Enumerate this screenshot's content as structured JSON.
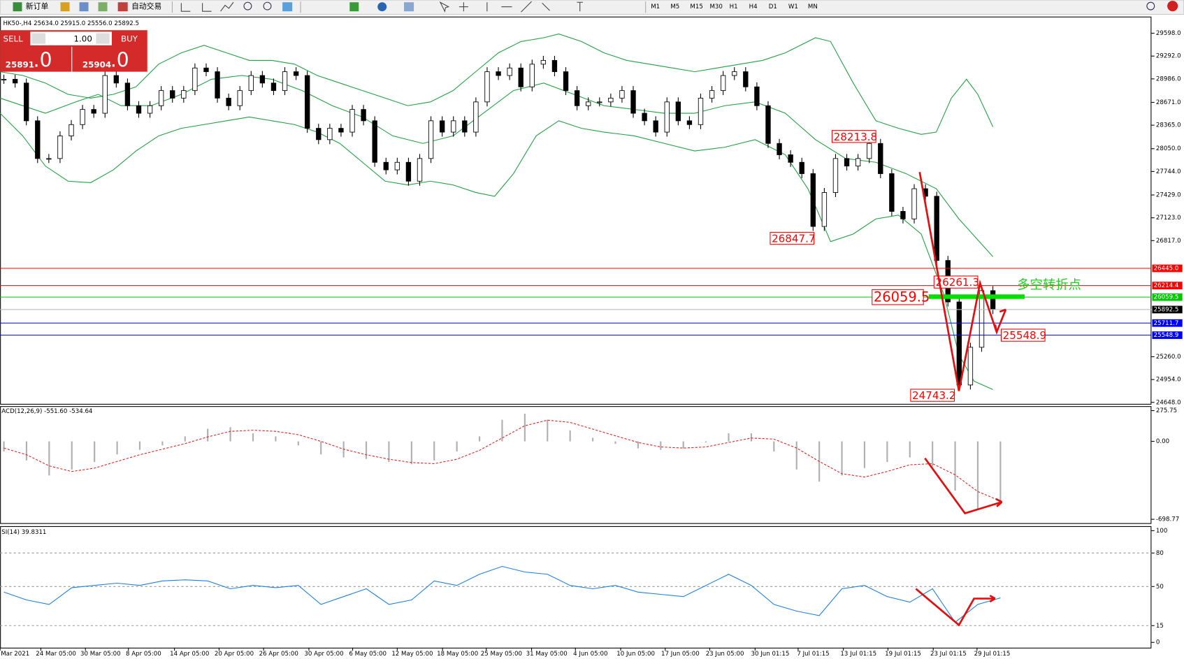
{
  "toolbar": {
    "buttons": [
      "新订单",
      "自动交易"
    ],
    "timeframes": [
      "M1",
      "M5",
      "M15",
      "M30",
      "H1",
      "H4",
      "D1",
      "W1",
      "MN"
    ]
  },
  "chart_info": "HK50-,H4  25634.0 25915.0 25556.0 25892.5",
  "trade_panel": {
    "sell": "SELL",
    "lots": "1.00",
    "buy": "BUY",
    "sell_price": "25891",
    "sell_fraction": ".0",
    "buy_price": "25904",
    "buy_fraction": ".0"
  },
  "time_axis": [
    "Mar 2021",
    "24 Mar 05:00",
    "30 Mar 05:00",
    "8 Apr 05:00",
    "14 Apr 05:00",
    "20 Apr 05:00",
    "26 Apr 05:00",
    "30 Apr 05:00",
    "6 May 05:00",
    "12 May 05:00",
    "18 May 05:00",
    "25 May 05:00",
    "31 May 05:00",
    "4 Jun 05:00",
    "10 Jun 05:00",
    "17 Jun 05:00",
    "23 Jun 05:00",
    "30 Jun 01:15",
    "7 Jul 01:15",
    "13 Jul 01:15",
    "19 Jul 01:15",
    "23 Jul 01:15",
    "29 Jul 01:15"
  ],
  "chart_data": [
    {
      "type": "candlestick",
      "values": [
        28981,
        28930,
        28424,
        27918,
        27918,
        28221,
        28373,
        28576,
        28525,
        29031,
        28930,
        28626,
        28525,
        28626,
        28829,
        28728,
        28829,
        29132,
        29082,
        28728,
        28626,
        28829,
        29031,
        28930,
        28829,
        29082,
        29031,
        28323,
        28171,
        28323,
        28272,
        28576,
        28424,
        27867,
        27766,
        27867,
        27614,
        27918,
        28424,
        28272,
        28424,
        28272,
        28677,
        29082,
        29031,
        29132,
        28879,
        29183,
        29234,
        29082,
        28829,
        28626,
        28677,
        28677,
        28728,
        28829,
        28525,
        28424,
        28272,
        28677,
        28424,
        28373,
        28728,
        28829,
        29031,
        29082,
        28879,
        28626,
        28120,
        27968,
        27867,
        27715,
        27007,
        27462,
        27918,
        27817,
        27918,
        28120,
        27715,
        27209,
        27108,
        27513,
        27412,
        26551,
        25995,
        24881,
        25387,
        26146,
        25892.5
      ],
      "ylim": [
        24628,
        29821
      ],
      "yticks": [
        {
          "value": 29598,
          "label": "29598.0"
        },
        {
          "value": 29292,
          "label": "29292.0"
        },
        {
          "value": 28986,
          "label": "28986.0"
        },
        {
          "value": 28671,
          "label": "28671.0"
        },
        {
          "value": 28365,
          "label": "28365.0"
        },
        {
          "value": 28050,
          "label": "28050.0"
        },
        {
          "value": 27744,
          "label": "27744.0"
        },
        {
          "value": 27429,
          "label": "27429.0"
        },
        {
          "value": 27123,
          "label": "27123.0"
        },
        {
          "value": 26817,
          "label": "26817.0"
        },
        {
          "value": 25260,
          "label": "25260.0"
        },
        {
          "value": 24954,
          "label": "24954.0"
        },
        {
          "value": 24648,
          "label": "24648.0"
        }
      ],
      "levels": [
        {
          "value": 26445,
          "label": "26445.0",
          "color": "#ff0000"
        },
        {
          "value": 26214.4,
          "label": "26214.4",
          "color": "#ff0000"
        },
        {
          "value": 26059.5,
          "label": "26059.5",
          "color": "#00c800"
        },
        {
          "value": 25892.5,
          "label": "25892.5",
          "color": "#000000"
        },
        {
          "value": 25711.7,
          "label": "25711.7",
          "color": "#0000ff"
        },
        {
          "value": 25548.9,
          "label": "25548.9",
          "color": "#0000ff"
        }
      ],
      "annotations": [
        28213.8,
        26847.7,
        26059.5,
        26261.3,
        25548.9,
        24743.2
      ],
      "note": "多空转折点"
    },
    {
      "type": "macd",
      "label": "ACD(12,26,9) -551.60 -534.64",
      "values": [
        -91,
        -171,
        -306,
        -252,
        -185,
        -117,
        -76,
        -36,
        45,
        113,
        127,
        72,
        45,
        -36,
        -117,
        -144,
        -158,
        -185,
        -205,
        -171,
        -91,
        45,
        194,
        248,
        194,
        99,
        32,
        -22,
        -63,
        -76,
        -63,
        -9,
        72,
        72,
        -91,
        -252,
        -361,
        -306,
        -239,
        -185,
        -144,
        -225,
        -442,
        -618,
        -551.6
      ],
      "signal": [
        -60,
        -120,
        -220,
        -270,
        -240,
        -180,
        -120,
        -70,
        -20,
        40,
        90,
        100,
        90,
        60,
        0,
        -70,
        -120,
        -160,
        -190,
        -200,
        -160,
        -80,
        30,
        140,
        190,
        170,
        110,
        50,
        -10,
        -50,
        -60,
        -50,
        -10,
        30,
        20,
        -60,
        -180,
        -290,
        -320,
        -270,
        -210,
        -200,
        -300,
        -450,
        -534.64
      ],
      "ylim": [
        -733,
        316
      ],
      "yticks": [
        275.75,
        {
          "value": 0,
          "label": "0.00"
        },
        -698.77
      ]
    },
    {
      "type": "rsi",
      "label": "SI(14) 39.8311",
      "values": [
        45,
        38,
        34,
        49,
        51,
        53,
        51,
        55,
        56,
        55,
        48,
        51,
        49,
        51,
        34,
        41,
        48,
        34,
        38,
        55,
        51,
        61,
        68,
        63,
        61,
        51,
        48,
        51,
        45,
        43,
        41,
        51,
        61,
        51,
        34,
        28,
        24,
        48,
        51,
        41,
        36,
        48,
        18,
        34,
        39.8311
      ],
      "ylim": [
        0,
        100
      ],
      "yticks": [
        100,
        80,
        50,
        15,
        0
      ]
    }
  ]
}
